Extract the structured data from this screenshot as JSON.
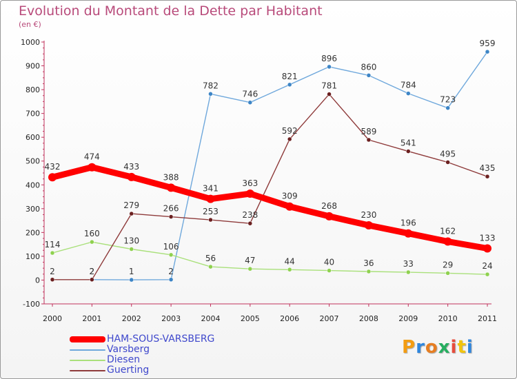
{
  "header": {
    "title": "Evolution du Montant de la Dette par Habitant",
    "subtitle": "(en €)"
  },
  "logo": {
    "text": "Proxiti"
  },
  "colors": {
    "title": "#b84a7a",
    "axis": "#c0305a",
    "legend_text": "#3f48cc"
  },
  "chart_data": {
    "type": "line",
    "title": "Evolution du Montant de la Dette par Habitant",
    "subtitle": "(en €)",
    "xlabel": "",
    "ylabel": "",
    "x": [
      2000,
      2001,
      2002,
      2003,
      2004,
      2005,
      2006,
      2007,
      2008,
      2009,
      2010,
      2011
    ],
    "ylim": [
      -100,
      1000
    ],
    "yticks": [
      -100,
      0,
      100,
      200,
      300,
      400,
      500,
      600,
      700,
      800,
      900,
      1000
    ],
    "grid": false,
    "legend_position": "bottom-left",
    "series": [
      {
        "name": "HAM-SOUS-VARSBERG",
        "color": "#ff0000",
        "marker": "#ff0000",
        "values": [
          432,
          474,
          433,
          388,
          341,
          363,
          309,
          268,
          230,
          196,
          162,
          133
        ]
      },
      {
        "name": "Varsberg",
        "color": "#6fa8dc",
        "marker": "#3d85c6",
        "values": [
          null,
          2,
          1,
          2,
          782,
          746,
          821,
          896,
          860,
          784,
          723,
          959
        ]
      },
      {
        "name": "Diesen",
        "color": "#a9e07a",
        "marker": "#8fd14f",
        "values": [
          114,
          160,
          130,
          106,
          56,
          47,
          44,
          40,
          36,
          33,
          29,
          24
        ]
      },
      {
        "name": "Guerting",
        "color": "#8e3a3a",
        "marker": "#6b2020",
        "values": [
          2,
          2,
          279,
          266,
          253,
          238,
          592,
          781,
          589,
          541,
          495,
          435
        ]
      }
    ]
  }
}
